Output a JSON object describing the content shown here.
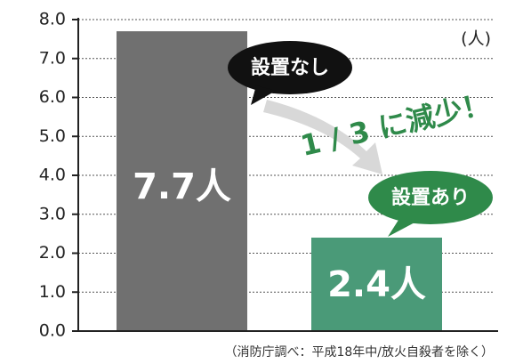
{
  "chart_data": {
    "type": "bar",
    "categories": [
      null,
      null
    ],
    "values": [
      7.7,
      2.4
    ],
    "value_labels": [
      "7.7人",
      "2.4人"
    ],
    "colors": [
      "#707070",
      "#4a9a78"
    ],
    "ylim": [
      0,
      8
    ],
    "yticks": [
      {
        "value": 0,
        "label": "0.0"
      },
      {
        "value": 1,
        "label": "1.0"
      },
      {
        "value": 2,
        "label": "2.0"
      },
      {
        "value": 3,
        "label": "3.0"
      },
      {
        "value": 4,
        "label": "4.0"
      },
      {
        "value": 5,
        "label": "5.0"
      },
      {
        "value": 6,
        "label": "6.0"
      },
      {
        "value": 7,
        "label": "7.0"
      },
      {
        "value": 8,
        "label": "8.0"
      }
    ],
    "grid": true,
    "unit_label": "(人)",
    "annotations": [
      "設置なし",
      "設置あり",
      "1 / 3 に減少！"
    ],
    "footnote": "（消防庁調べ：平成18年中/放火自殺者を除く）"
  }
}
